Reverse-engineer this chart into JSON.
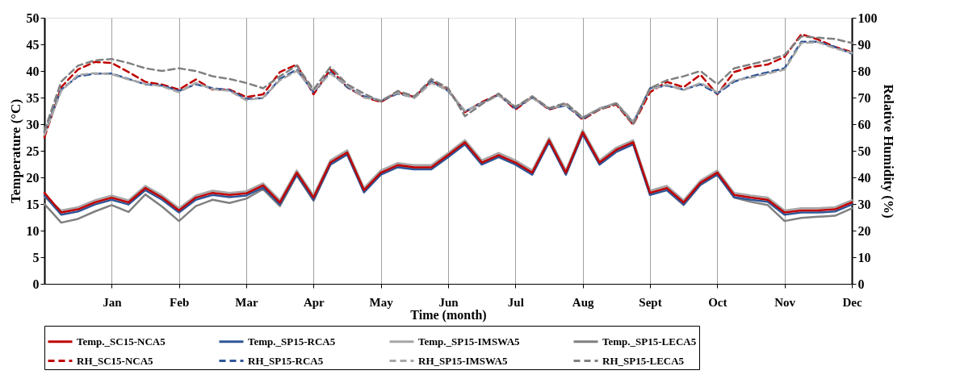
{
  "chart_data": {
    "type": "line",
    "xlabel": "Time (month)",
    "ylabel": "Temperature (°C)",
    "y2label": "Relative Humidity (%)",
    "categories": [
      null,
      null,
      null,
      null,
      "Jan",
      null,
      null,
      null,
      "Feb",
      null,
      null,
      null,
      "Mar",
      null,
      null,
      null,
      "Apr",
      null,
      null,
      null,
      "May",
      null,
      null,
      null,
      "Jun",
      null,
      null,
      null,
      "Jul",
      null,
      null,
      null,
      "Aug",
      null,
      null,
      null,
      "Sept",
      null,
      null,
      null,
      "Oct",
      null,
      null,
      null,
      "Nov",
      null,
      null,
      null,
      "Dec"
    ],
    "ylim": [
      0,
      50
    ],
    "yticks": [
      0,
      5,
      10,
      15,
      20,
      25,
      30,
      35,
      40,
      45,
      50
    ],
    "y2lim": [
      0,
      100
    ],
    "y2ticks": [
      0,
      10,
      20,
      30,
      40,
      50,
      60,
      70,
      80,
      90,
      100
    ],
    "grid": "x",
    "legend": "bottom",
    "marker": "none",
    "series": [
      {
        "name": "Temp._SC15-NCA5",
        "color": "#c00000",
        "line_style": "solid",
        "values": [
          17.1,
          13.4,
          14.0,
          15.3,
          16.2,
          15.3,
          18.0,
          16.2,
          13.8,
          16.2,
          17.1,
          16.7,
          17.0,
          18.5,
          15.3,
          20.9,
          16.2,
          22.8,
          24.7,
          17.6,
          20.9,
          22.3,
          21.9,
          21.9,
          24.2,
          26.6,
          22.8,
          24.2,
          22.8,
          20.9,
          27.0,
          20.9,
          28.5,
          22.8,
          25.2,
          26.6,
          17.1,
          18.0,
          15.3,
          19.0,
          20.9,
          16.7,
          16.2,
          15.8,
          13.4,
          13.8,
          13.8,
          14.0,
          15.3
        ]
      },
      {
        "name": "Temp._SP15-RCA5",
        "color": "#2f5597",
        "line_style": "solid",
        "values": [
          16.6,
          13.0,
          13.6,
          14.9,
          15.8,
          14.9,
          17.6,
          15.8,
          13.4,
          15.8,
          16.7,
          16.3,
          16.6,
          18.1,
          14.9,
          20.5,
          15.8,
          22.4,
          24.3,
          17.2,
          20.5,
          21.9,
          21.5,
          21.5,
          23.8,
          26.2,
          22.4,
          23.8,
          22.4,
          20.5,
          26.6,
          20.5,
          28.1,
          22.4,
          24.8,
          26.2,
          16.7,
          17.6,
          14.9,
          18.6,
          20.5,
          16.3,
          15.8,
          15.4,
          13.0,
          13.4,
          13.4,
          13.6,
          14.9
        ]
      },
      {
        "name": "Temp._SP15-IMSWA5",
        "color": "#a6a6a6",
        "line_style": "solid",
        "values": [
          16.4,
          13.8,
          14.4,
          15.7,
          16.6,
          15.7,
          18.4,
          16.6,
          14.2,
          16.6,
          17.5,
          17.1,
          17.4,
          18.9,
          15.7,
          21.3,
          16.6,
          23.2,
          25.1,
          18.0,
          21.3,
          22.7,
          22.3,
          22.3,
          24.6,
          27.0,
          23.2,
          24.6,
          23.2,
          21.3,
          27.4,
          21.3,
          28.9,
          23.2,
          25.6,
          27.0,
          17.5,
          18.4,
          15.7,
          19.4,
          21.3,
          17.1,
          16.6,
          16.2,
          13.8,
          14.2,
          14.2,
          14.4,
          15.7
        ]
      },
      {
        "name": "Temp._SP15-LECA5",
        "color": "#808080",
        "line_style": "solid",
        "values": [
          15.0,
          11.5,
          12.2,
          13.6,
          14.8,
          13.5,
          16.8,
          14.5,
          11.8,
          14.6,
          15.8,
          15.2,
          16.0,
          17.8,
          14.6,
          20.4,
          15.6,
          22.4,
          24.4,
          17.2,
          20.6,
          22.0,
          21.6,
          21.6,
          24.0,
          26.4,
          22.6,
          24.0,
          22.6,
          20.6,
          26.8,
          20.6,
          28.3,
          22.6,
          25.0,
          26.4,
          16.8,
          17.6,
          14.8,
          18.6,
          20.6,
          16.2,
          15.4,
          14.8,
          11.8,
          12.4,
          12.6,
          12.8,
          14.2
        ]
      },
      {
        "name": "RH_SC15-NCA5",
        "color": "#c00000",
        "line_style": "dashed",
        "axis": "y2",
        "values": [
          55.0,
          73.9,
          80.6,
          83.4,
          83.0,
          79.6,
          75.9,
          74.9,
          73.0,
          76.8,
          73.0,
          73.0,
          70.2,
          71.2,
          79.6,
          82.4,
          71.2,
          80.6,
          73.9,
          70.2,
          68.3,
          72.0,
          70.2,
          76.3,
          73.0,
          64.5,
          68.3,
          71.2,
          65.5,
          70.2,
          65.5,
          67.4,
          61.7,
          65.5,
          67.4,
          59.8,
          72.0,
          75.9,
          73.9,
          78.6,
          71.2,
          79.6,
          81.5,
          82.4,
          85.3,
          93.8,
          91.8,
          89.0,
          87.1
        ]
      },
      {
        "name": "RH_SP15-RCA5",
        "color": "#2f5597",
        "line_style": "dashed",
        "axis": "y2",
        "values": [
          57.0,
          73.0,
          78.0,
          79.0,
          79.0,
          77.0,
          75.0,
          74.5,
          72.5,
          75.0,
          73.5,
          72.8,
          69.5,
          69.8,
          77.0,
          80.5,
          72.0,
          79.5,
          74.0,
          70.5,
          68.8,
          71.5,
          70.0,
          76.0,
          72.5,
          64.8,
          68.0,
          71.0,
          66.0,
          70.0,
          65.8,
          67.0,
          62.0,
          65.8,
          67.8,
          60.5,
          73.5,
          74.5,
          73.0,
          75.0,
          71.5,
          76.0,
          78.0,
          79.5,
          81.0,
          91.0,
          91.0,
          89.0,
          86.5
        ]
      },
      {
        "name": "RH_SP15-IMSWA5",
        "color": "#a6a6a6",
        "line_style": "dashed",
        "axis": "y2",
        "values": [
          56.0,
          72.5,
          78.5,
          79.2,
          78.8,
          76.8,
          75.2,
          74.2,
          72.0,
          75.5,
          73.2,
          72.5,
          69.0,
          70.0,
          76.5,
          80.0,
          72.5,
          79.0,
          74.5,
          70.0,
          69.0,
          71.8,
          69.8,
          75.5,
          72.8,
          65.0,
          67.8,
          70.8,
          66.5,
          69.8,
          66.0,
          67.2,
          62.5,
          66.0,
          68.0,
          61.0,
          73.0,
          74.8,
          72.8,
          75.5,
          72.0,
          76.5,
          77.5,
          79.0,
          80.5,
          90.5,
          90.8,
          88.5,
          86.8
        ]
      },
      {
        "name": "RH_SP15-LECA5",
        "color": "#808080",
        "line_style": "dashed",
        "axis": "y2",
        "values": [
          57.5,
          76.0,
          82.0,
          84.0,
          84.5,
          83.0,
          81.0,
          80.0,
          81.0,
          80.0,
          78.0,
          77.0,
          75.5,
          73.5,
          78.0,
          82.0,
          73.0,
          81.5,
          75.0,
          71.5,
          68.5,
          72.5,
          70.5,
          77.0,
          73.5,
          63.0,
          67.5,
          71.5,
          66.5,
          70.5,
          66.0,
          68.0,
          62.5,
          65.5,
          67.8,
          60.0,
          73.5,
          76.5,
          78.0,
          80.0,
          75.0,
          81.0,
          82.5,
          84.0,
          86.0,
          93.0,
          92.5,
          92.0,
          90.5
        ]
      }
    ]
  }
}
